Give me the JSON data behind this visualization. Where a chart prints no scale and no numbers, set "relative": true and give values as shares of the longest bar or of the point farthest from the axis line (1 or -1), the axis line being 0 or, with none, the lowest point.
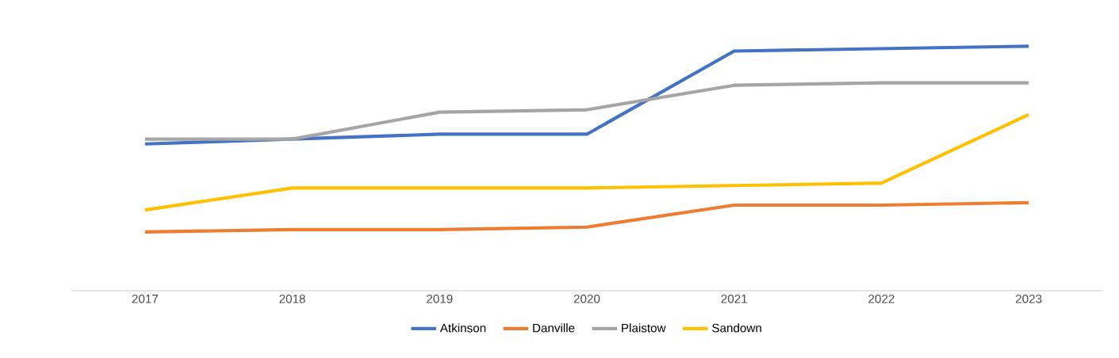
{
  "chart_data": {
    "type": "line",
    "relative": true,
    "categories": [
      "2017",
      "2018",
      "2019",
      "2020",
      "2021",
      "2022",
      "2023"
    ],
    "series": [
      {
        "name": "Atkinson",
        "color": "#4472c4",
        "values": [
          0.6,
          0.62,
          0.64,
          0.64,
          0.98,
          0.99,
          1
        ]
      },
      {
        "name": "Danville",
        "color": "#ed7d31",
        "values": [
          0.24,
          0.25,
          0.25,
          0.26,
          0.35,
          0.35,
          0.36
        ]
      },
      {
        "name": "Plaistow",
        "color": "#a5a5a5",
        "values": [
          0.62,
          0.62,
          0.73,
          0.74,
          0.84,
          0.85,
          0.85
        ]
      },
      {
        "name": "Sandown",
        "color": "#ffc000",
        "values": [
          0.33,
          0.42,
          0.42,
          0.42,
          0.43,
          0.44,
          0.72
        ]
      }
    ],
    "legend": "bottom",
    "marker": "none",
    "line_style": "solid"
  }
}
